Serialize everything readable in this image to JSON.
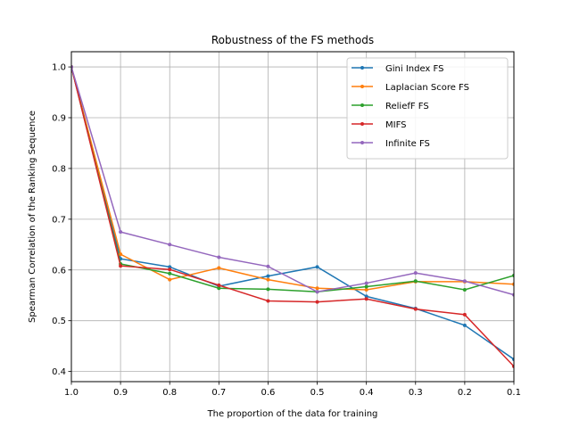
{
  "chart_data": {
    "type": "line",
    "title": "Robustness of the FS methods",
    "xlabel": "The proportion of the data for training",
    "ylabel": "Spearman Correlation of the Ranking Sequence",
    "x": [
      1.0,
      0.9,
      0.8,
      0.7,
      0.6,
      0.5,
      0.4,
      0.3,
      0.2,
      0.1
    ],
    "x_tick_labels": [
      "1.0",
      "0.9",
      "0.8",
      "0.7",
      "0.6",
      "0.5",
      "0.4",
      "0.3",
      "0.2",
      "0.1"
    ],
    "xlim": [
      1.0,
      0.1
    ],
    "x_reversed": true,
    "y_ticks": [
      0.4,
      0.5,
      0.6,
      0.7,
      0.8,
      0.9,
      1.0
    ],
    "y_tick_labels": [
      "0.4",
      "0.5",
      "0.6",
      "0.7",
      "0.8",
      "0.9",
      "1.0"
    ],
    "ylim": [
      0.38,
      1.03
    ],
    "grid": true,
    "legend_position": "top-right",
    "series": [
      {
        "name": "Gini Index FS",
        "color": "#1f77b4",
        "values": [
          1.0,
          0.622,
          0.606,
          0.568,
          0.588,
          0.606,
          0.548,
          0.524,
          0.491,
          0.424
        ]
      },
      {
        "name": "Laplacian Score FS",
        "color": "#ff7f0e",
        "values": [
          1.0,
          0.631,
          0.581,
          0.604,
          0.581,
          0.564,
          0.561,
          0.577,
          0.577,
          0.572
        ]
      },
      {
        "name": "ReliefF FS",
        "color": "#2ca02c",
        "values": [
          1.0,
          0.612,
          0.593,
          0.564,
          0.562,
          0.557,
          0.567,
          0.578,
          0.561,
          0.589
        ]
      },
      {
        "name": "MIFS",
        "color": "#d62728",
        "values": [
          1.0,
          0.608,
          0.601,
          0.57,
          0.539,
          0.537,
          0.543,
          0.523,
          0.512,
          0.41
        ]
      },
      {
        "name": "Infinite FS",
        "color": "#9467bd",
        "values": [
          1.0,
          0.675,
          0.65,
          0.625,
          0.607,
          0.557,
          0.574,
          0.594,
          0.578,
          0.551
        ]
      }
    ]
  }
}
